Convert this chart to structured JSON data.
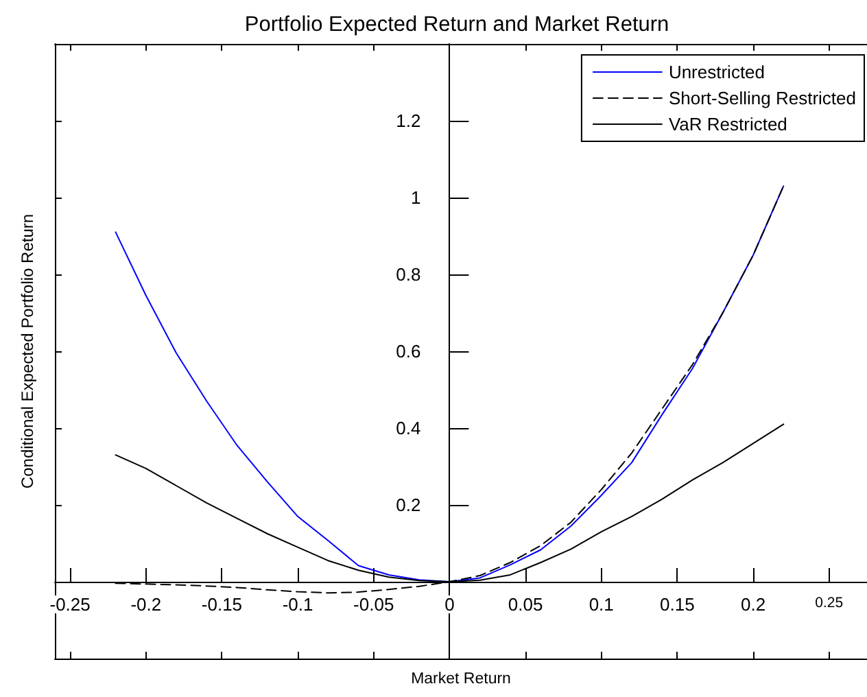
{
  "chart_data": {
    "type": "line",
    "title": "Portfolio Expected Return and Market Return",
    "xlabel": "Market Return",
    "ylabel": "Conditional Expected Portfolio Return",
    "x": [
      -0.22,
      -0.2,
      -0.18,
      -0.16,
      -0.14,
      -0.12,
      -0.1,
      -0.08,
      -0.06,
      -0.04,
      -0.02,
      0,
      0.02,
      0.04,
      0.06,
      0.08,
      0.1,
      0.12,
      0.14,
      0.16,
      0.18,
      0.2,
      0.22
    ],
    "series": [
      {
        "name": "Unrestricted",
        "color": "#0000ff",
        "line_style": "solid",
        "values": [
          0.91,
          0.745,
          0.595,
          0.47,
          0.355,
          0.26,
          0.17,
          0.107,
          0.042,
          0.018,
          0.005,
          0,
          0.01,
          0.044,
          0.083,
          0.145,
          0.225,
          0.31,
          0.435,
          0.555,
          0.7,
          0.85,
          1.03
        ]
      },
      {
        "name": "Short-Selling Restricted",
        "color": "#000000",
        "line_style": "dashed",
        "values": [
          -0.004,
          -0.006,
          -0.008,
          -0.011,
          -0.015,
          -0.021,
          -0.026,
          -0.029,
          -0.027,
          -0.02,
          -0.012,
          0,
          0.016,
          0.05,
          0.094,
          0.155,
          0.24,
          0.335,
          0.45,
          0.565,
          0.7,
          0.85,
          1.03
        ]
      },
      {
        "name": "VaR Restricted",
        "color": "#000000",
        "line_style": "solid",
        "values": [
          0.33,
          0.295,
          0.25,
          0.205,
          0.165,
          0.125,
          0.09,
          0.055,
          0.03,
          0.012,
          0.003,
          0,
          0.004,
          0.018,
          0.05,
          0.085,
          0.13,
          0.17,
          0.215,
          0.265,
          0.31,
          0.36,
          0.41
        ]
      }
    ],
    "xlim": [
      -0.26,
      0.275
    ],
    "ylim": [
      -0.2,
      1.4
    ],
    "xticks": [
      -0.25,
      -0.2,
      -0.15,
      -0.1,
      -0.05,
      0,
      0.05,
      0.1,
      0.15,
      0.2,
      0.25
    ],
    "yticks": [
      0.2,
      0.4,
      0.6,
      0.8,
      1,
      1.2
    ],
    "legend": "top right",
    "marker": "none"
  }
}
